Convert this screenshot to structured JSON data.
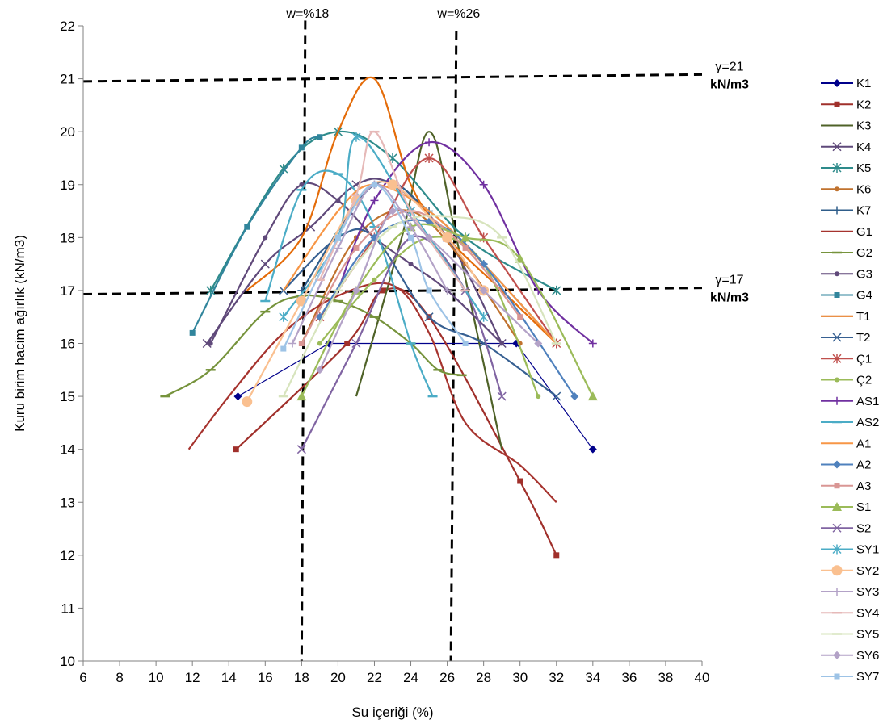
{
  "chart_data": {
    "type": "line",
    "title": "",
    "xlabel": "Su içeriği (%)",
    "ylabel": "Kuru birim hacim ağırlık (kN/m3)",
    "xlim": [
      6,
      40
    ],
    "ylim": [
      10,
      22
    ],
    "x_ticks": [
      6,
      8,
      10,
      12,
      14,
      16,
      18,
      20,
      22,
      24,
      26,
      28,
      30,
      32,
      34,
      36,
      38,
      40
    ],
    "y_ticks": [
      10,
      11,
      12,
      13,
      14,
      15,
      16,
      17,
      18,
      19,
      20,
      21,
      22
    ],
    "grid": false,
    "legend_position": "right",
    "reference_lines": [
      {
        "label": "w=%18",
        "orientation": "vertical",
        "x1": 18.2,
        "y1": 22.1,
        "x2": 18.0,
        "y2": 10.0
      },
      {
        "label": "w=%26",
        "orientation": "vertical",
        "x1": 26.5,
        "y1": 21.9,
        "x2": 26.2,
        "y2": 10.0
      },
      {
        "label_lines": [
          "γ=21",
          "kN/m3"
        ],
        "orientation": "horizontal",
        "x1": 6,
        "y1": 20.95,
        "x2": 40,
        "y2": 21.08
      },
      {
        "label_lines": [
          "γ=17",
          "kN/m3"
        ],
        "orientation": "horizontal",
        "x1": 6,
        "y1": 16.93,
        "x2": 40,
        "y2": 17.05
      }
    ],
    "series": [
      {
        "name": "K1",
        "color": "#00008B",
        "marker": "diamond",
        "smooth": false,
        "points": [
          [
            14.5,
            15
          ],
          [
            19.5,
            16
          ],
          [
            29.8,
            16
          ],
          [
            34,
            14
          ]
        ]
      },
      {
        "name": "K2",
        "color": "#A0302B",
        "marker": "square",
        "points": [
          [
            14.4,
            14
          ],
          [
            20.5,
            16
          ],
          [
            22.5,
            17
          ],
          [
            25,
            16.5
          ],
          [
            30,
            13.4
          ],
          [
            32,
            12
          ]
        ]
      },
      {
        "name": "K3",
        "color": "#4F6228",
        "marker": "none",
        "points": [
          [
            21,
            15
          ],
          [
            23.5,
            18
          ],
          [
            25,
            20
          ],
          [
            26.5,
            18
          ],
          [
            29,
            14
          ]
        ]
      },
      {
        "name": "K4",
        "color": "#5F497A",
        "marker": "x",
        "points": [
          [
            12.8,
            16
          ],
          [
            16,
            17.5
          ],
          [
            18.5,
            18.2
          ],
          [
            21,
            19
          ],
          [
            23,
            19
          ],
          [
            26,
            18
          ],
          [
            29,
            16
          ]
        ]
      },
      {
        "name": "K5",
        "color": "#2E8B8B",
        "marker": "asterisk",
        "points": [
          [
            13,
            17
          ],
          [
            17,
            19.3
          ],
          [
            20,
            20
          ],
          [
            23,
            19.5
          ],
          [
            27,
            18
          ],
          [
            32,
            17
          ]
        ]
      },
      {
        "name": "K6",
        "color": "#C0722E",
        "marker": "dot",
        "points": [
          [
            18,
            16
          ],
          [
            21,
            18
          ],
          [
            24,
            18.5
          ],
          [
            27,
            17.5
          ],
          [
            30,
            16
          ]
        ]
      },
      {
        "name": "K7",
        "color": "#2F5D8A",
        "marker": "plus",
        "points": [
          [
            18,
            17
          ],
          [
            22,
            19
          ],
          [
            25,
            18.5
          ],
          [
            28,
            17.5
          ],
          [
            32,
            16
          ]
        ]
      },
      {
        "name": "G1",
        "color": "#A6332E",
        "marker": "none",
        "points": [
          [
            11.8,
            14
          ],
          [
            14,
            15
          ],
          [
            17,
            16.2
          ],
          [
            20,
            16.9
          ],
          [
            23,
            17.1
          ],
          [
            25,
            16.2
          ],
          [
            27,
            14.5
          ],
          [
            30,
            13.7
          ],
          [
            32,
            13
          ]
        ]
      },
      {
        "name": "G2",
        "color": "#76933C",
        "marker": "dash",
        "points": [
          [
            10.5,
            15
          ],
          [
            13,
            15.5
          ],
          [
            16,
            16.6
          ],
          [
            18,
            16.9
          ],
          [
            20,
            16.8
          ],
          [
            22,
            16.5
          ],
          [
            24,
            16
          ],
          [
            25.5,
            15.5
          ],
          [
            26.8,
            15.4
          ]
        ]
      },
      {
        "name": "G3",
        "color": "#60497A",
        "marker": "dot",
        "points": [
          [
            13,
            16
          ],
          [
            16,
            18
          ],
          [
            18,
            19
          ],
          [
            20,
            18.7
          ],
          [
            22,
            18
          ],
          [
            24,
            17.5
          ],
          [
            26,
            17
          ],
          [
            29,
            16
          ]
        ]
      },
      {
        "name": "G4",
        "color": "#31859C",
        "marker": "square",
        "points": [
          [
            12,
            16.2
          ],
          [
            15,
            18.2
          ],
          [
            18,
            19.7
          ],
          [
            19,
            19.9
          ]
        ]
      },
      {
        "name": "T1",
        "color": "#E46C0A",
        "marker": "none",
        "points": [
          [
            15,
            17
          ],
          [
            18,
            18
          ],
          [
            20,
            20
          ],
          [
            22,
            21
          ],
          [
            24,
            19
          ],
          [
            26,
            18
          ],
          [
            29,
            17
          ],
          [
            32,
            16
          ]
        ]
      },
      {
        "name": "T2",
        "color": "#376092",
        "marker": "x",
        "points": [
          [
            17,
            17
          ],
          [
            20,
            18
          ],
          [
            22,
            18
          ],
          [
            25,
            16.5
          ],
          [
            28,
            16
          ],
          [
            32,
            15
          ]
        ]
      },
      {
        "name": "Ç1",
        "color": "#C0504D",
        "marker": "asterisk",
        "points": [
          [
            19,
            16.5
          ],
          [
            22,
            18
          ],
          [
            25,
            19.5
          ],
          [
            28,
            18
          ],
          [
            32,
            16
          ]
        ]
      },
      {
        "name": "Ç2",
        "color": "#9BBB59",
        "marker": "dot",
        "points": [
          [
            19,
            16
          ],
          [
            22,
            17.2
          ],
          [
            25,
            18
          ],
          [
            28,
            17.5
          ],
          [
            31,
            15
          ]
        ]
      },
      {
        "name": "AS1",
        "color": "#7030A0",
        "marker": "plus",
        "points": [
          [
            20,
            17
          ],
          [
            22,
            18.7
          ],
          [
            25,
            19.8
          ],
          [
            28,
            19
          ],
          [
            31,
            17
          ],
          [
            34,
            16
          ]
        ]
      },
      {
        "name": "AS2",
        "color": "#4BACC6",
        "marker": "dash",
        "points": [
          [
            16,
            16.8
          ],
          [
            18,
            18.9
          ],
          [
            20,
            19.2
          ],
          [
            22,
            18.2
          ],
          [
            24,
            16
          ],
          [
            25.2,
            15
          ]
        ]
      },
      {
        "name": "A1",
        "color": "#F79646",
        "marker": "none",
        "points": [
          [
            17,
            17
          ],
          [
            20,
            18.5
          ],
          [
            22,
            19
          ],
          [
            25,
            18.5
          ],
          [
            28,
            17.5
          ],
          [
            32,
            16
          ]
        ]
      },
      {
        "name": "A2",
        "color": "#4F81BD",
        "marker": "diamond",
        "points": [
          [
            19,
            16.5
          ],
          [
            22,
            18
          ],
          [
            25,
            18.3
          ],
          [
            28,
            17.5
          ],
          [
            33,
            15
          ]
        ]
      },
      {
        "name": "A3",
        "color": "#D99694",
        "marker": "square",
        "points": [
          [
            18,
            16
          ],
          [
            21,
            17.8
          ],
          [
            24,
            18.5
          ],
          [
            27,
            17.8
          ],
          [
            30,
            16.5
          ]
        ]
      },
      {
        "name": "S1",
        "color": "#9BBB59",
        "marker": "triangle",
        "points": [
          [
            18,
            15
          ],
          [
            21,
            17
          ],
          [
            24,
            18.2
          ],
          [
            27,
            18
          ],
          [
            30,
            17.6
          ],
          [
            34,
            15
          ]
        ]
      },
      {
        "name": "S2",
        "color": "#8064A2",
        "marker": "x",
        "points": [
          [
            18,
            14
          ],
          [
            21,
            16
          ],
          [
            24,
            18
          ],
          [
            27,
            17
          ],
          [
            29,
            15
          ]
        ]
      },
      {
        "name": "SY1",
        "color": "#4BACC6",
        "marker": "asterisk",
        "points": [
          [
            17,
            16.5
          ],
          [
            20,
            18
          ],
          [
            21,
            19.9
          ],
          [
            24,
            18.5
          ],
          [
            28,
            16.5
          ]
        ]
      },
      {
        "name": "SY2",
        "color": "#FAC090",
        "marker": "circle",
        "points": [
          [
            15,
            14.9
          ],
          [
            18,
            16.8
          ],
          [
            21,
            18.7
          ],
          [
            23,
            19
          ],
          [
            26,
            18
          ],
          [
            28,
            17
          ]
        ]
      },
      {
        "name": "SY3",
        "color": "#B3A2C7",
        "marker": "plus",
        "points": [
          [
            17.5,
            16
          ],
          [
            20,
            17.8
          ],
          [
            22,
            19
          ],
          [
            24,
            18.2
          ],
          [
            26,
            17
          ]
        ]
      },
      {
        "name": "SY4",
        "color": "#E6B9B8",
        "marker": "dash",
        "points": [
          [
            19,
            17.2
          ],
          [
            21,
            18.8
          ],
          [
            22,
            20
          ],
          [
            24,
            18.5
          ],
          [
            27,
            17
          ]
        ]
      },
      {
        "name": "SY5",
        "color": "#D7E4BD",
        "marker": "dash",
        "points": [
          [
            17,
            15
          ],
          [
            20,
            17
          ],
          [
            23,
            18.2
          ],
          [
            26,
            18.4
          ],
          [
            29,
            18
          ],
          [
            32,
            16
          ]
        ]
      },
      {
        "name": "SY6",
        "color": "#B3A2C7",
        "marker": "diamond",
        "points": [
          [
            19,
            15.5
          ],
          [
            21,
            17
          ],
          [
            23,
            18.5
          ],
          [
            25,
            18
          ],
          [
            28,
            17
          ],
          [
            31,
            16
          ]
        ]
      },
      {
        "name": "SY7",
        "color": "#9DC3E6",
        "marker": "square",
        "points": [
          [
            17,
            15.9
          ],
          [
            20,
            18
          ],
          [
            22,
            19
          ],
          [
            24,
            18
          ],
          [
            25,
            17
          ],
          [
            27,
            16
          ]
        ]
      }
    ]
  }
}
